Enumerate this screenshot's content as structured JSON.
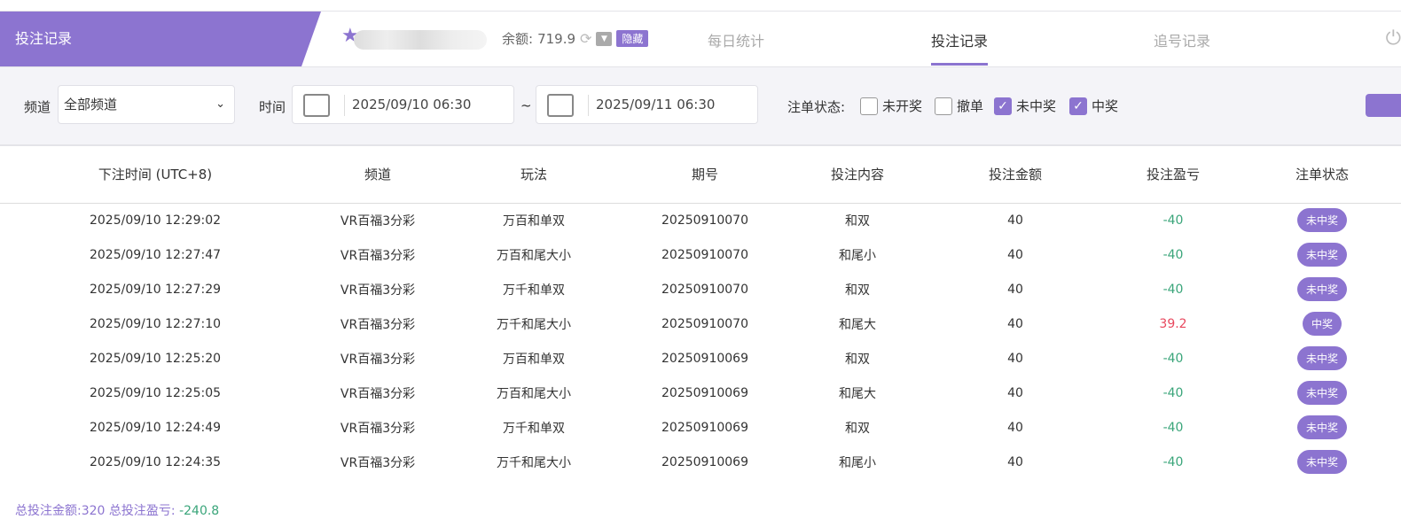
{
  "banner_title": "投注记录",
  "balance": {
    "label": "余额:",
    "value": "719.9",
    "hide": "隐藏"
  },
  "tabs": [
    {
      "label": "每日统计"
    },
    {
      "label": "投注记录"
    },
    {
      "label": "追号记录"
    }
  ],
  "filter": {
    "channel_label": "频道",
    "channel_value": "全部频道",
    "time_label": "时间",
    "start": "2025/09/10 06:30",
    "tilde": "~",
    "end": "2025/09/11 06:30",
    "status_label": "注单状态:",
    "statuses": [
      {
        "label": "未开奖",
        "checked": false
      },
      {
        "label": "撤单",
        "checked": false
      },
      {
        "label": "未中奖",
        "checked": true
      },
      {
        "label": "中奖",
        "checked": true
      }
    ]
  },
  "columns": [
    "下注时间 (UTC+8)",
    "频道",
    "玩法",
    "期号",
    "投注内容",
    "投注金额",
    "投注盈亏",
    "注单状态"
  ],
  "rows": [
    [
      "2025/09/10 12:29:02",
      "VR百福3分彩",
      "万百和单双",
      "20250910070",
      "和双",
      "40",
      "-40",
      "未中奖"
    ],
    [
      "2025/09/10 12:27:47",
      "VR百福3分彩",
      "万百和尾大小",
      "20250910070",
      "和尾小",
      "40",
      "-40",
      "未中奖"
    ],
    [
      "2025/09/10 12:27:29",
      "VR百福3分彩",
      "万千和单双",
      "20250910070",
      "和双",
      "40",
      "-40",
      "未中奖"
    ],
    [
      "2025/09/10 12:27:10",
      "VR百福3分彩",
      "万千和尾大小",
      "20250910070",
      "和尾大",
      "40",
      "39.2",
      "中奖"
    ],
    [
      "2025/09/10 12:25:20",
      "VR百福3分彩",
      "万百和单双",
      "20250910069",
      "和双",
      "40",
      "-40",
      "未中奖"
    ],
    [
      "2025/09/10 12:25:05",
      "VR百福3分彩",
      "万百和尾大小",
      "20250910069",
      "和尾大",
      "40",
      "-40",
      "未中奖"
    ],
    [
      "2025/09/10 12:24:49",
      "VR百福3分彩",
      "万千和单双",
      "20250910069",
      "和双",
      "40",
      "-40",
      "未中奖"
    ],
    [
      "2025/09/10 12:24:35",
      "VR百福3分彩",
      "万千和尾大小",
      "20250910069",
      "和尾小",
      "40",
      "-40",
      "未中奖"
    ]
  ],
  "footer": {
    "total_bet_label": "总投注金额:",
    "total_bet": "320",
    "total_pl_label": "总投注盈亏:",
    "total_pl": "-240.8"
  },
  "colors": {
    "accent": "#8c74d0",
    "loss": "#3aa57a",
    "win": "#e8485e"
  }
}
